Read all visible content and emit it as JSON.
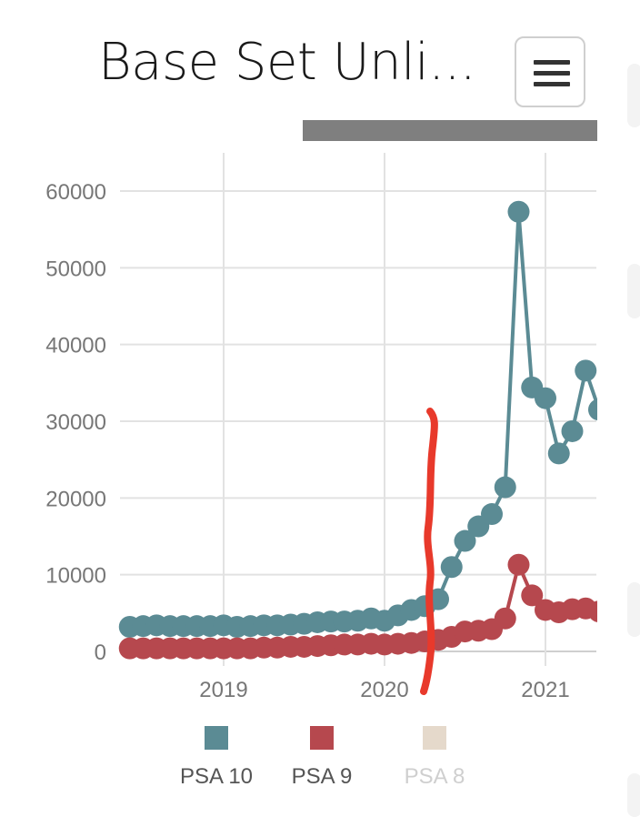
{
  "header": {
    "title": "Base Set Unli...",
    "menu_icon": "hamburger-icon"
  },
  "chart_data": {
    "type": "line",
    "title": "Base Set Unli...",
    "xlabel": "",
    "ylabel": "",
    "ylim": [
      0,
      60000
    ],
    "y_ticks": [
      "0",
      "10000",
      "20000",
      "30000",
      "40000",
      "50000",
      "60000"
    ],
    "x_ticks": [
      "2019",
      "2020",
      "2021"
    ],
    "grid": true,
    "legend_position": "bottom",
    "series": [
      {
        "name": "PSA 10",
        "color": "#5b8b94",
        "x": [
          "2018-06",
          "2018-07",
          "2018-08",
          "2018-09",
          "2018-10",
          "2018-11",
          "2018-12",
          "2019-01",
          "2019-02",
          "2019-03",
          "2019-04",
          "2019-05",
          "2019-06",
          "2019-07",
          "2019-08",
          "2019-09",
          "2019-10",
          "2019-11",
          "2019-12",
          "2020-01",
          "2020-02",
          "2020-03",
          "2020-04",
          "2020-05",
          "2020-06",
          "2020-07",
          "2020-08",
          "2020-09",
          "2020-10",
          "2020-11",
          "2020-12",
          "2021-01",
          "2021-02",
          "2021-03",
          "2021-04",
          "2021-05"
        ],
        "values": [
          3200,
          3300,
          3400,
          3300,
          3300,
          3300,
          3300,
          3400,
          3200,
          3300,
          3400,
          3400,
          3500,
          3600,
          3800,
          3900,
          3900,
          4000,
          4300,
          4000,
          4700,
          5400,
          5900,
          6800,
          11000,
          14400,
          16300,
          17900,
          21400,
          57300,
          34400,
          33000,
          25800,
          28700,
          36600,
          31500
        ]
      },
      {
        "name": "PSA 9",
        "color": "#b6484e",
        "x": [
          "2018-06",
          "2018-07",
          "2018-08",
          "2018-09",
          "2018-10",
          "2018-11",
          "2018-12",
          "2019-01",
          "2019-02",
          "2019-03",
          "2019-04",
          "2019-05",
          "2019-06",
          "2019-07",
          "2019-08",
          "2019-09",
          "2019-10",
          "2019-11",
          "2019-12",
          "2020-01",
          "2020-02",
          "2020-03",
          "2020-04",
          "2020-05",
          "2020-06",
          "2020-07",
          "2020-08",
          "2020-09",
          "2020-10",
          "2020-11",
          "2020-12",
          "2021-01",
          "2021-02",
          "2021-03",
          "2021-04",
          "2021-05"
        ],
        "values": [
          400,
          400,
          400,
          400,
          400,
          400,
          400,
          400,
          400,
          400,
          500,
          500,
          600,
          600,
          700,
          800,
          900,
          900,
          1000,
          900,
          1000,
          1100,
          1300,
          1500,
          1900,
          2600,
          2700,
          2900,
          4300,
          11300,
          7300,
          5400,
          5100,
          5500,
          5600,
          5200
        ]
      },
      {
        "name": "PSA 8",
        "color": "#e5d9cb",
        "hidden": true,
        "x": [],
        "values": []
      }
    ],
    "annotations": [
      {
        "type": "hand-drawn-line",
        "color": "#e8392b",
        "x": "2020-04"
      }
    ]
  }
}
